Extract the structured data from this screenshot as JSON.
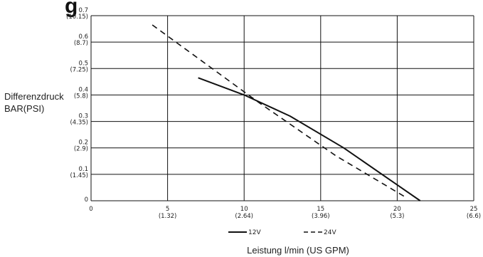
{
  "chart_data": {
    "type": "line",
    "title_fragment": "g",
    "ylabel_lines": [
      "Differenzdruck",
      "BAR(PSI)"
    ],
    "xlabel": "Leistung l/min (US GPM)",
    "xlim": [
      0,
      25
    ],
    "ylim": [
      0,
      0.7
    ],
    "grid": true,
    "x_ticks": [
      {
        "value": 0,
        "primary": "0",
        "secondary": ""
      },
      {
        "value": 5,
        "primary": "5",
        "secondary": "(1.32)"
      },
      {
        "value": 10,
        "primary": "10",
        "secondary": "(2.64)"
      },
      {
        "value": 15,
        "primary": "15",
        "secondary": "(3.96)"
      },
      {
        "value": 20,
        "primary": "20",
        "secondary": "(5.3)"
      },
      {
        "value": 25,
        "primary": "25",
        "secondary": "(6.6)"
      }
    ],
    "y_ticks": [
      {
        "value": 0,
        "primary": "0",
        "secondary": ""
      },
      {
        "value": 0.1,
        "primary": "0.1",
        "secondary": "(1.45)"
      },
      {
        "value": 0.2,
        "primary": "0.2",
        "secondary": "(2.9)"
      },
      {
        "value": 0.3,
        "primary": "0.3",
        "secondary": "(4.35)"
      },
      {
        "value": 0.4,
        "primary": "0.4",
        "secondary": "(5.8)"
      },
      {
        "value": 0.5,
        "primary": "0.5",
        "secondary": "(7.25)"
      },
      {
        "value": 0.6,
        "primary": "0.6",
        "secondary": "(8.7)"
      },
      {
        "value": 0.7,
        "primary": "0.7",
        "secondary": "(10.15)"
      }
    ],
    "series": [
      {
        "name": "12V",
        "dash": "solid",
        "color": "#111111",
        "x": [
          7,
          10,
          13,
          16.5,
          20,
          21.5
        ],
        "y": [
          0.465,
          0.4,
          0.32,
          0.2,
          0.06,
          0
        ]
      },
      {
        "name": "24V",
        "dash": "dashed",
        "color": "#111111",
        "x": [
          4,
          11,
          16,
          20.5
        ],
        "y": [
          0.665,
          0.37,
          0.17,
          0.015
        ]
      }
    ],
    "legend_position": "bottom-center"
  }
}
